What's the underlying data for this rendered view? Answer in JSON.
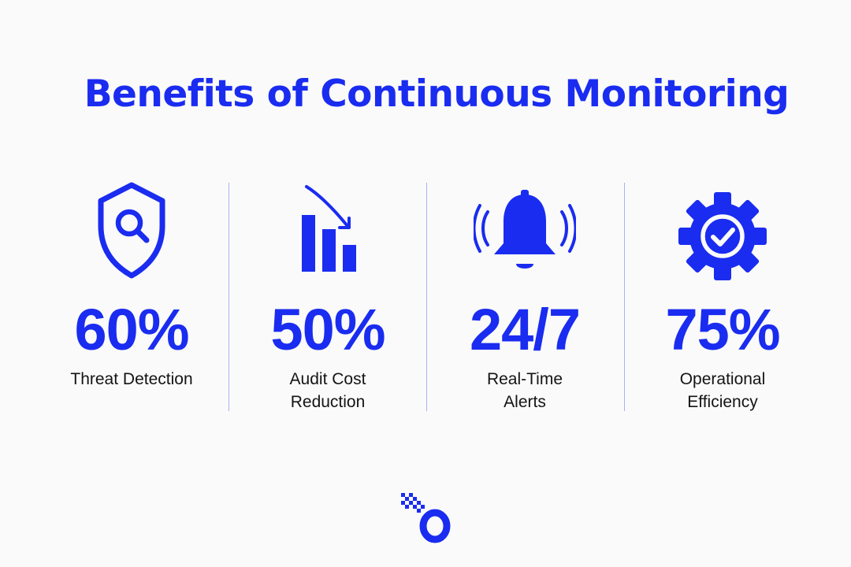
{
  "title": "Benefits of Continuous Monitoring",
  "colors": {
    "accent": "#1a2cf0",
    "background": "#fafafa",
    "text": "#141414",
    "divider": "#aab0f0"
  },
  "stats": [
    {
      "icon": "shield-search-icon",
      "value": "60%",
      "label_lines": [
        "Threat Detection"
      ]
    },
    {
      "icon": "bar-chart-down-arrow-icon",
      "value": "50%",
      "label_lines": [
        "Audit Cost",
        "Reduction"
      ]
    },
    {
      "icon": "ringing-bell-icon",
      "value": "24/7",
      "label_lines": [
        "Real-Time",
        "Alerts"
      ]
    },
    {
      "icon": "gear-check-icon",
      "value": "75%",
      "label_lines": [
        "Operational",
        "Efficiency"
      ]
    }
  ],
  "logo": {
    "icon": "brand-logo-icon"
  }
}
